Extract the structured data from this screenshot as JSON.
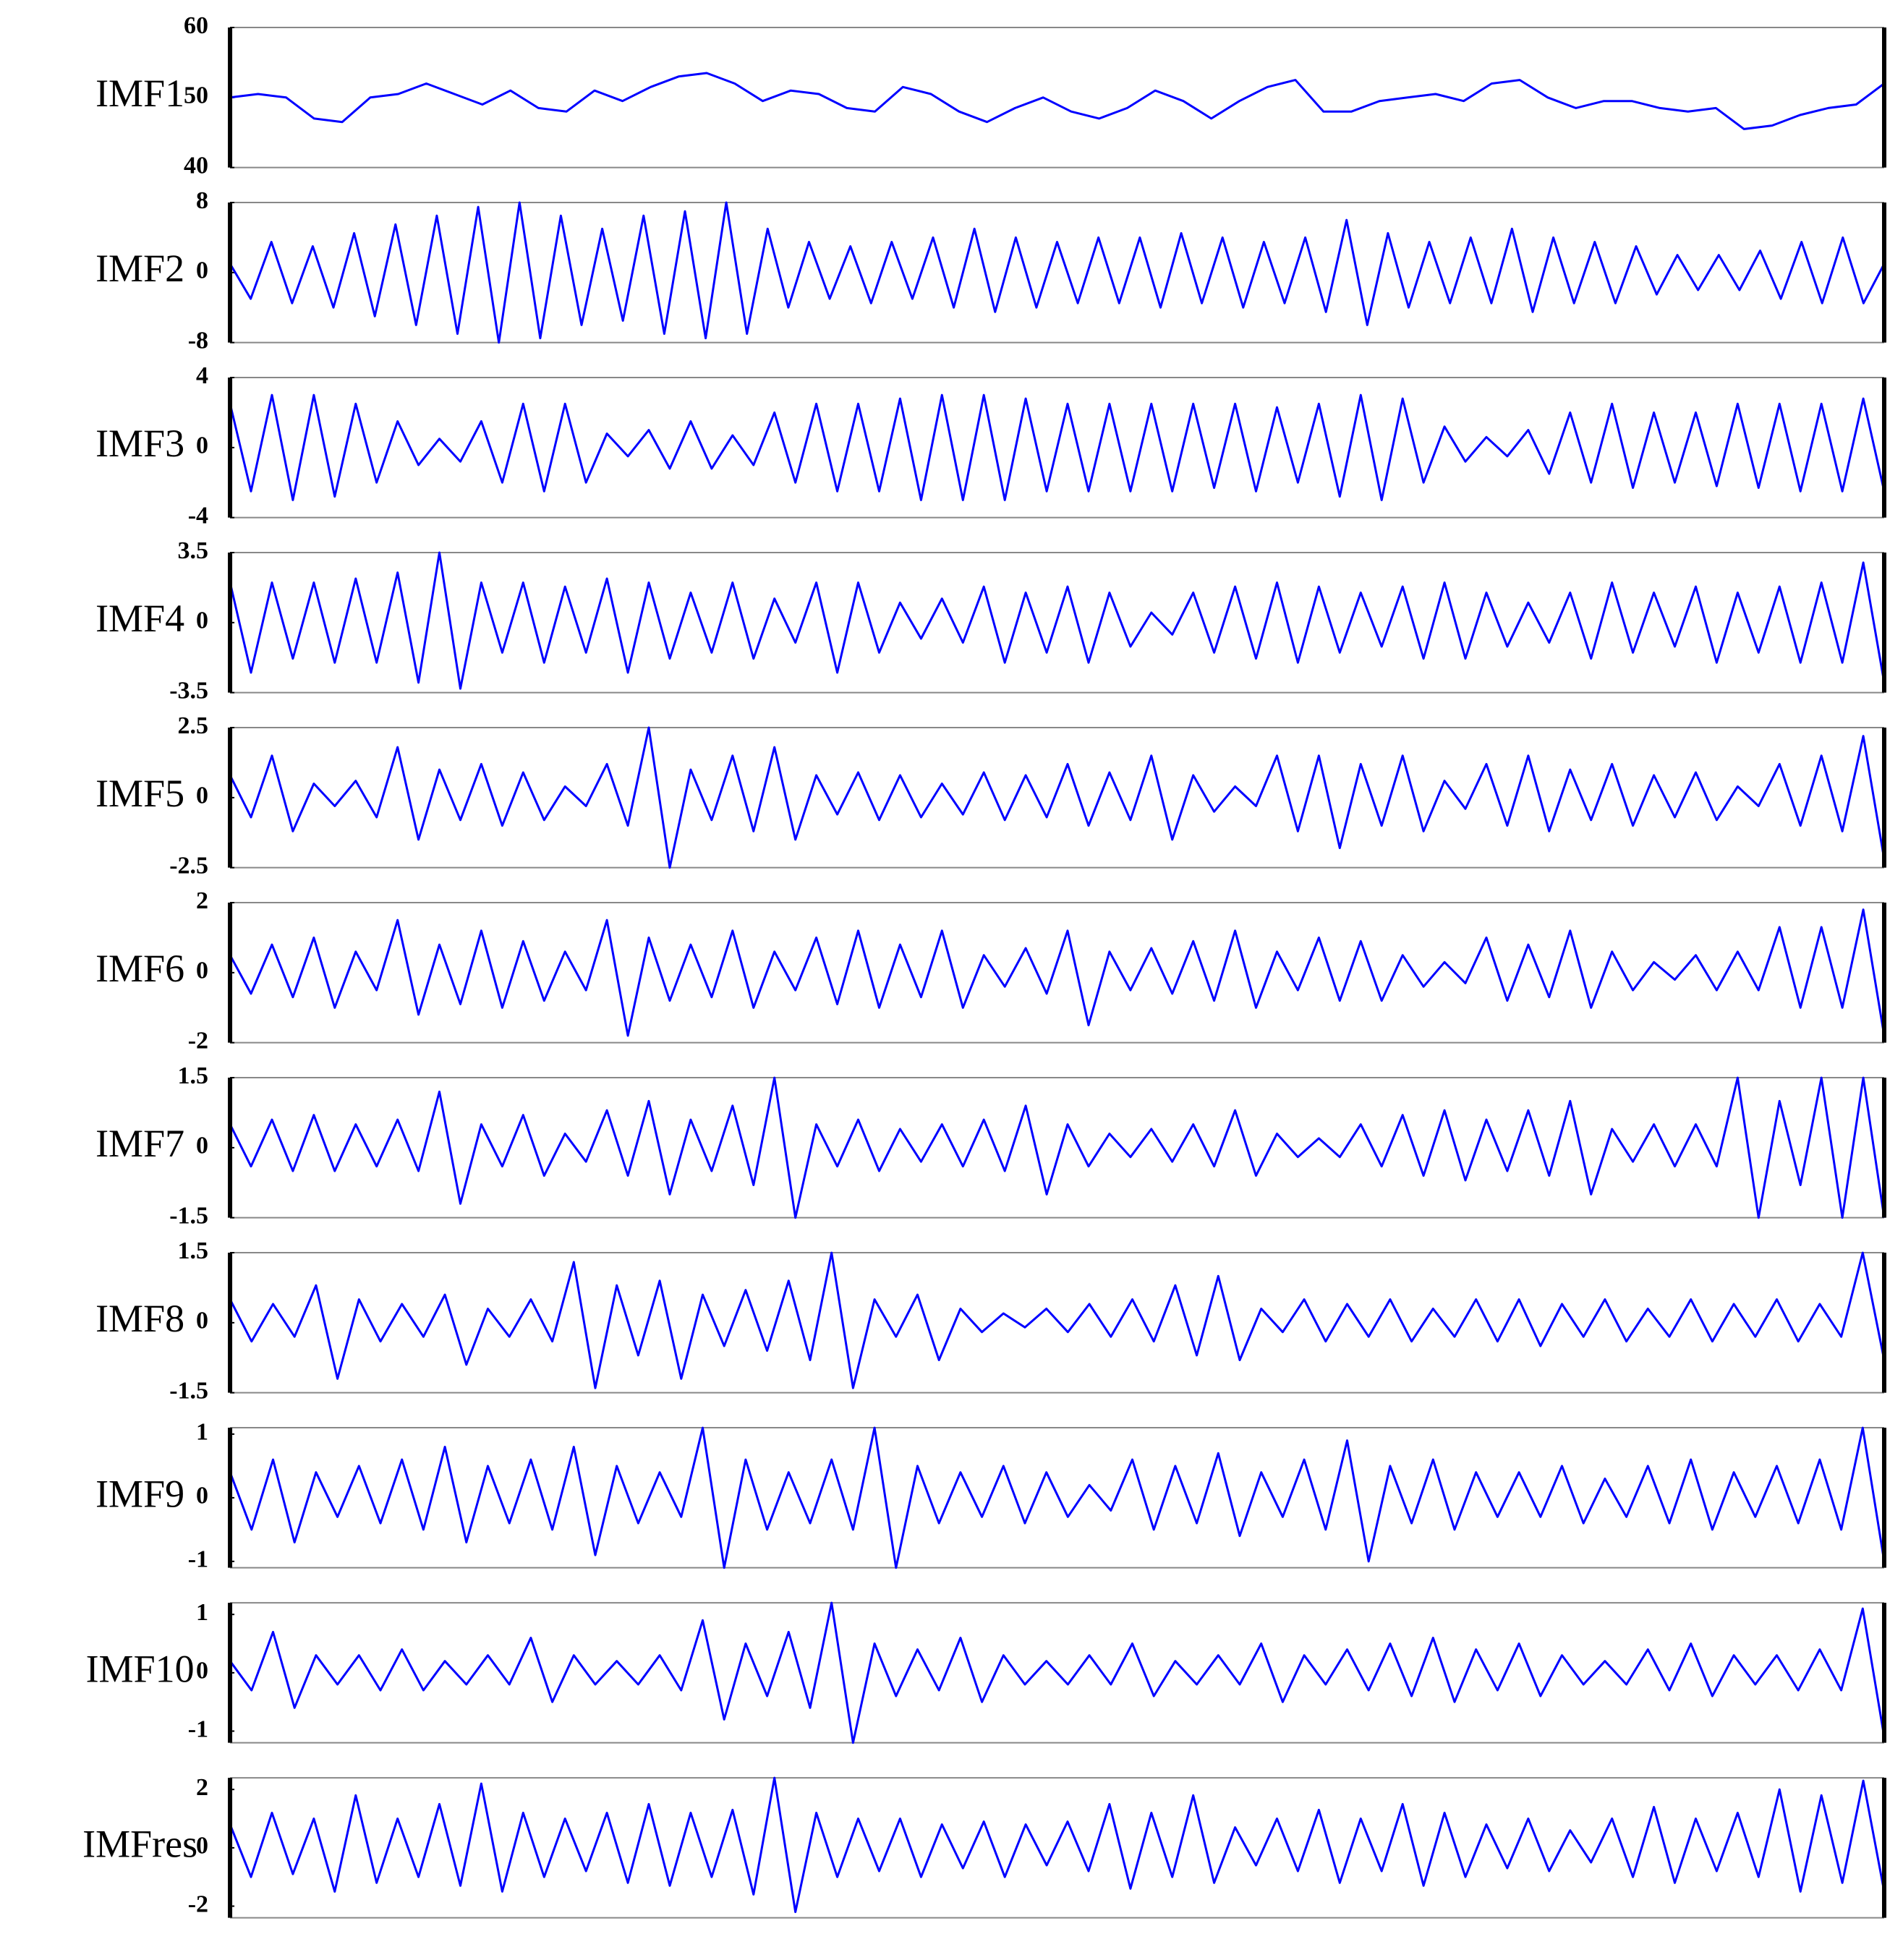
{
  "chart_data": [
    {
      "type": "line",
      "ylabel": "IMF1",
      "color": "#0000ff",
      "ylim": [
        40,
        60
      ],
      "yticks": [
        40,
        50,
        60
      ],
      "values": [
        50,
        50.5,
        50,
        47,
        46.5,
        50,
        50.5,
        52,
        50.5,
        49,
        51,
        48.5,
        48,
        51,
        49.5,
        51.5,
        53,
        53.5,
        52,
        49.5,
        51,
        50.5,
        48.5,
        48,
        51.5,
        50.5,
        48,
        46.5,
        48.5,
        50,
        48,
        47,
        48.5,
        51,
        49.5,
        47,
        49.5,
        51.5,
        52.5,
        48,
        48,
        49.5,
        50,
        50.5,
        49.5,
        52,
        52.5,
        50,
        48.5,
        49.5,
        49.5,
        48.5,
        48,
        48.5,
        45.5,
        46,
        47.5,
        48.5,
        49,
        52
      ]
    },
    {
      "type": "line",
      "ylabel": "IMF2",
      "color": "#0000ff",
      "ylim": [
        -8,
        8
      ],
      "yticks": [
        -8,
        0,
        8
      ],
      "values": [
        1,
        -3,
        3.5,
        -3.5,
        3,
        -4,
        4.5,
        -5,
        5.5,
        -6,
        6.5,
        -7,
        7.5,
        -8,
        8,
        -7.5,
        6.5,
        -6,
        5,
        -5.5,
        6.5,
        -7,
        7,
        -7.5,
        8,
        -7,
        5,
        -4,
        3.5,
        -3,
        3,
        -3.5,
        3.5,
        -3,
        4,
        -4,
        5,
        -4.5,
        4,
        -4,
        3.5,
        -3.5,
        4,
        -3.5,
        4,
        -4,
        4.5,
        -3.5,
        4,
        -4,
        3.5,
        -3.5,
        4,
        -4.5,
        6,
        -6,
        4.5,
        -4,
        3.5,
        -3.5,
        4,
        -3.5,
        5,
        -4.5,
        4,
        -3.5,
        3.5,
        -3.5,
        3,
        -2.5,
        2,
        -2,
        2,
        -2,
        2.5,
        -3,
        3.5,
        -3.5,
        4,
        -3.5,
        1
      ]
    },
    {
      "type": "line",
      "ylabel": "IMF3",
      "color": "#0000ff",
      "ylim": [
        -4,
        4
      ],
      "yticks": [
        -4,
        0,
        4
      ],
      "values": [
        2.5,
        -2.5,
        3,
        -3,
        3,
        -2.8,
        2.5,
        -2,
        1.5,
        -1,
        0.5,
        -0.8,
        1.5,
        -2,
        2.5,
        -2.5,
        2.5,
        -2,
        0.8,
        -0.5,
        1,
        -1.2,
        1.5,
        -1.2,
        0.7,
        -1,
        2,
        -2,
        2.5,
        -2.5,
        2.5,
        -2.5,
        2.8,
        -3,
        3,
        -3,
        3,
        -3,
        2.8,
        -2.5,
        2.5,
        -2.5,
        2.5,
        -2.5,
        2.5,
        -2.5,
        2.5,
        -2.3,
        2.5,
        -2.5,
        2.3,
        -2,
        2.5,
        -2.8,
        3,
        -3,
        2.8,
        -2,
        1.2,
        -0.8,
        0.6,
        -0.5,
        1,
        -1.5,
        2,
        -2,
        2.5,
        -2.3,
        2,
        -2,
        2,
        -2.2,
        2.5,
        -2.3,
        2.5,
        -2.5,
        2.5,
        -2.5,
        2.8,
        -2.5
      ]
    },
    {
      "type": "line",
      "ylabel": "IMF4",
      "color": "#0000ff",
      "ylim": [
        -3.5,
        3.5
      ],
      "yticks": [
        -3.5,
        0,
        3.5
      ],
      "values": [
        2,
        -2.5,
        2,
        -1.8,
        2,
        -2,
        2.2,
        -2,
        2.5,
        -3,
        3.5,
        -3.3,
        2,
        -1.5,
        2,
        -2,
        1.8,
        -1.5,
        2.2,
        -2.5,
        2,
        -1.8,
        1.5,
        -1.5,
        2,
        -1.8,
        1.2,
        -1,
        2,
        -2.5,
        2,
        -1.5,
        1,
        -0.8,
        1.2,
        -1,
        1.8,
        -2,
        1.5,
        -1.5,
        1.8,
        -2,
        1.5,
        -1.2,
        0.5,
        -0.6,
        1.5,
        -1.5,
        1.8,
        -1.8,
        2,
        -2,
        1.8,
        -1.5,
        1.5,
        -1.2,
        1.8,
        -1.8,
        2,
        -1.8,
        1.5,
        -1.2,
        1,
        -1,
        1.5,
        -1.8,
        2,
        -1.5,
        1.5,
        -1.2,
        1.8,
        -2,
        1.5,
        -1.5,
        1.8,
        -2,
        2,
        -2,
        3,
        -3
      ]
    },
    {
      "type": "line",
      "ylabel": "IMF5",
      "color": "#0000ff",
      "ylim": [
        -2.5,
        2.5
      ],
      "yticks": [
        -2.5,
        0,
        2.5
      ],
      "values": [
        0.8,
        -0.7,
        1.5,
        -1.2,
        0.5,
        -0.3,
        0.6,
        -0.7,
        1.8,
        -1.5,
        1,
        -0.8,
        1.2,
        -1,
        0.9,
        -0.8,
        0.4,
        -0.3,
        1.2,
        -1,
        2.5,
        -2.5,
        1,
        -0.8,
        1.5,
        -1.2,
        1.8,
        -1.5,
        0.8,
        -0.6,
        0.9,
        -0.8,
        0.8,
        -0.7,
        0.5,
        -0.6,
        0.9,
        -0.8,
        0.8,
        -0.7,
        1.2,
        -1,
        0.9,
        -0.8,
        1.5,
        -1.5,
        0.8,
        -0.5,
        0.4,
        -0.3,
        1.5,
        -1.2,
        1.5,
        -1.8,
        1.2,
        -1,
        1.5,
        -1.2,
        0.6,
        -0.4,
        1.2,
        -1,
        1.5,
        -1.2,
        1,
        -0.8,
        1.2,
        -1,
        0.8,
        -0.7,
        0.9,
        -0.8,
        0.4,
        -0.3,
        1.2,
        -1,
        1.5,
        -1.2,
        2.2,
        -2.2
      ]
    },
    {
      "type": "line",
      "ylabel": "IMF6",
      "color": "#0000ff",
      "ylim": [
        -2,
        2
      ],
      "yticks": [
        -2,
        0,
        2
      ],
      "values": [
        0.5,
        -0.6,
        0.8,
        -0.7,
        1,
        -1,
        0.6,
        -0.5,
        1.5,
        -1.2,
        0.8,
        -0.9,
        1.2,
        -1,
        0.9,
        -0.8,
        0.6,
        -0.5,
        1.5,
        -1.8,
        1,
        -0.8,
        0.8,
        -0.7,
        1.2,
        -1,
        0.6,
        -0.5,
        1,
        -0.9,
        1.2,
        -1,
        0.8,
        -0.7,
        1.2,
        -1,
        0.5,
        -0.4,
        0.7,
        -0.6,
        1.2,
        -1.5,
        0.6,
        -0.5,
        0.7,
        -0.6,
        0.9,
        -0.8,
        1.2,
        -1,
        0.6,
        -0.5,
        1,
        -0.8,
        0.9,
        -0.8,
        0.5,
        -0.4,
        0.3,
        -0.3,
        1,
        -0.8,
        0.8,
        -0.7,
        1.2,
        -1,
        0.6,
        -0.5,
        0.3,
        -0.2,
        0.5,
        -0.5,
        0.6,
        -0.5,
        1.3,
        -1,
        1.3,
        -1,
        1.8,
        -1.8
      ]
    },
    {
      "type": "line",
      "ylabel": "IMF7",
      "color": "#0000ff",
      "ylim": [
        -1.5,
        1.5
      ],
      "yticks": [
        -1.5,
        0,
        1.5
      ],
      "values": [
        0.5,
        -0.4,
        0.6,
        -0.5,
        0.7,
        -0.5,
        0.5,
        -0.4,
        0.6,
        -0.5,
        1.2,
        -1.2,
        0.5,
        -0.4,
        0.7,
        -0.6,
        0.3,
        -0.3,
        0.8,
        -0.6,
        1,
        -1,
        0.6,
        -0.5,
        0.9,
        -0.8,
        1.5,
        -1.5,
        0.5,
        -0.4,
        0.6,
        -0.5,
        0.4,
        -0.3,
        0.5,
        -0.4,
        0.6,
        -0.5,
        0.9,
        -1,
        0.5,
        -0.4,
        0.3,
        -0.2,
        0.4,
        -0.3,
        0.5,
        -0.4,
        0.8,
        -0.6,
        0.3,
        -0.2,
        0.2,
        -0.2,
        0.5,
        -0.4,
        0.7,
        -0.6,
        0.8,
        -0.7,
        0.6,
        -0.5,
        0.8,
        -0.6,
        1,
        -1,
        0.4,
        -0.3,
        0.5,
        -0.4,
        0.5,
        -0.4,
        1.5,
        -1.5,
        1,
        -0.8,
        1.5,
        -1.5,
        1.5,
        -1.5
      ]
    },
    {
      "type": "line",
      "ylabel": "IMF8",
      "color": "#0000ff",
      "ylim": [
        -1.5,
        1.5
      ],
      "yticks": [
        -1.5,
        0,
        1.5
      ],
      "values": [
        0.5,
        -0.4,
        0.4,
        -0.3,
        0.8,
        -1.2,
        0.5,
        -0.4,
        0.4,
        -0.3,
        0.6,
        -0.9,
        0.3,
        -0.3,
        0.5,
        -0.4,
        1.3,
        -1.4,
        0.8,
        -0.7,
        0.9,
        -1.2,
        0.6,
        -0.5,
        0.7,
        -0.6,
        0.9,
        -0.8,
        1.5,
        -1.4,
        0.5,
        -0.3,
        0.6,
        -0.8,
        0.3,
        -0.2,
        0.2,
        -0.1,
        0.3,
        -0.2,
        0.4,
        -0.3,
        0.5,
        -0.4,
        0.8,
        -0.7,
        1,
        -0.8,
        0.3,
        -0.2,
        0.5,
        -0.4,
        0.4,
        -0.3,
        0.5,
        -0.4,
        0.3,
        -0.3,
        0.5,
        -0.4,
        0.5,
        -0.5,
        0.4,
        -0.3,
        0.5,
        -0.4,
        0.3,
        -0.3,
        0.5,
        -0.4,
        0.4,
        -0.3,
        0.5,
        -0.4,
        0.4,
        -0.3,
        1.5,
        -0.8
      ]
    },
    {
      "type": "line",
      "ylabel": "IMF9",
      "color": "#0000ff",
      "ylim": [
        -1.1,
        1.1
      ],
      "yticks": [
        -1,
        0,
        1
      ],
      "values": [
        0.4,
        -0.5,
        0.6,
        -0.7,
        0.4,
        -0.3,
        0.5,
        -0.4,
        0.6,
        -0.5,
        0.8,
        -0.7,
        0.5,
        -0.4,
        0.6,
        -0.5,
        0.8,
        -0.9,
        0.5,
        -0.4,
        0.4,
        -0.3,
        1.1,
        -1.1,
        0.6,
        -0.5,
        0.4,
        -0.4,
        0.6,
        -0.5,
        1.1,
        -1.1,
        0.5,
        -0.4,
        0.4,
        -0.3,
        0.5,
        -0.4,
        0.4,
        -0.3,
        0.2,
        -0.2,
        0.6,
        -0.5,
        0.5,
        -0.4,
        0.7,
        -0.6,
        0.4,
        -0.3,
        0.6,
        -0.5,
        0.9,
        -1,
        0.5,
        -0.4,
        0.6,
        -0.5,
        0.4,
        -0.3,
        0.4,
        -0.3,
        0.5,
        -0.4,
        0.3,
        -0.3,
        0.5,
        -0.4,
        0.6,
        -0.5,
        0.4,
        -0.3,
        0.5,
        -0.4,
        0.6,
        -0.5,
        1.1,
        -1
      ]
    },
    {
      "type": "line",
      "ylabel": "IMF10",
      "color": "#0000ff",
      "ylim": [
        -1.2,
        1.2
      ],
      "yticks": [
        -1,
        0,
        1
      ],
      "values": [
        0.2,
        -0.3,
        0.7,
        -0.6,
        0.3,
        -0.2,
        0.3,
        -0.3,
        0.4,
        -0.3,
        0.2,
        -0.2,
        0.3,
        -0.2,
        0.6,
        -0.5,
        0.3,
        -0.2,
        0.2,
        -0.2,
        0.3,
        -0.3,
        0.9,
        -0.8,
        0.5,
        -0.4,
        0.7,
        -0.6,
        1.2,
        -1.2,
        0.5,
        -0.4,
        0.4,
        -0.3,
        0.6,
        -0.5,
        0.3,
        -0.2,
        0.2,
        -0.2,
        0.3,
        -0.2,
        0.5,
        -0.4,
        0.2,
        -0.2,
        0.3,
        -0.2,
        0.5,
        -0.5,
        0.3,
        -0.2,
        0.4,
        -0.3,
        0.5,
        -0.4,
        0.6,
        -0.5,
        0.4,
        -0.3,
        0.5,
        -0.4,
        0.3,
        -0.2,
        0.2,
        -0.2,
        0.4,
        -0.3,
        0.5,
        -0.4,
        0.3,
        -0.2,
        0.3,
        -0.3,
        0.4,
        -0.3,
        1.1,
        -1.1
      ]
    },
    {
      "type": "line",
      "ylabel": "IMFres",
      "color": "#0000ff",
      "ylim": [
        -2.4,
        2.4
      ],
      "yticks": [
        -2,
        0,
        2
      ],
      "values": [
        0.8,
        -1,
        1.2,
        -0.9,
        1,
        -1.5,
        1.8,
        -1.2,
        1,
        -1,
        1.5,
        -1.3,
        2.2,
        -1.5,
        1.2,
        -1,
        1,
        -0.8,
        1.2,
        -1.2,
        1.5,
        -1.3,
        1.2,
        -1,
        1.3,
        -1.6,
        2.4,
        -2.2,
        1.2,
        -1,
        1,
        -0.8,
        1,
        -1,
        0.8,
        -0.7,
        0.9,
        -1,
        0.8,
        -0.6,
        0.9,
        -0.8,
        1.5,
        -1.4,
        1.2,
        -1,
        1.8,
        -1.2,
        0.7,
        -0.6,
        1,
        -0.8,
        1.3,
        -1.2,
        1,
        -0.8,
        1.5,
        -1.3,
        1.2,
        -1,
        0.8,
        -0.7,
        1,
        -0.8,
        0.6,
        -0.5,
        1,
        -1,
        1.4,
        -1.2,
        1,
        -0.8,
        1.2,
        -1,
        2,
        -1.5,
        1.8,
        -1.2,
        2.3,
        -1.5
      ]
    }
  ]
}
